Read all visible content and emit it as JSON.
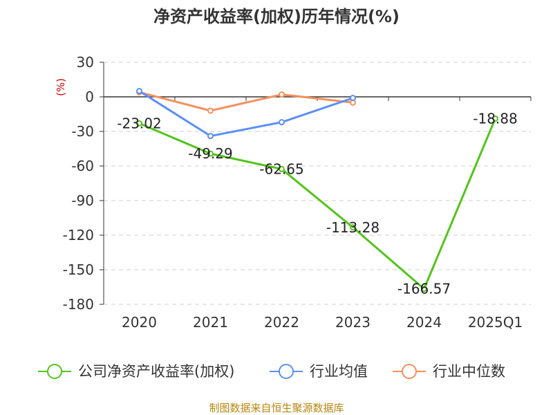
{
  "chart_data": {
    "type": "line",
    "title": "净资产收益率(加权)历年情况(%)",
    "ylabel": "(%)",
    "xlabel": "",
    "categories": [
      "2020",
      "2021",
      "2022",
      "2023",
      "2024",
      "2025Q1"
    ],
    "ylim": [
      -180,
      30
    ],
    "yticks": [
      30,
      0,
      -30,
      -60,
      -90,
      -120,
      -150,
      -180
    ],
    "grid": true,
    "legend_position": "bottom",
    "series": [
      {
        "name": "公司净资产收益率(加权)",
        "color": "#52c41a",
        "values": [
          -23.02,
          -49.29,
          -62.65,
          -113.28,
          -166.57,
          -18.88
        ],
        "labels": [
          "-23.02",
          "-49.29",
          "-62.65",
          "-113.28",
          "-166.57",
          "-18.88"
        ]
      },
      {
        "name": "行业均值",
        "color": "#5b8ff9",
        "values": [
          5,
          -34,
          -22,
          -1,
          null,
          null
        ]
      },
      {
        "name": "行业中位数",
        "color": "#f6905d",
        "values": [
          4,
          -12,
          2,
          -5,
          null,
          null
        ]
      }
    ]
  },
  "footer": {
    "source": "制图数据来自恒生聚源数据库"
  },
  "colors": {
    "title": "#333333",
    "axis_label": "#cc0000",
    "footer": "#b8860b",
    "grid": "#cccccc"
  }
}
